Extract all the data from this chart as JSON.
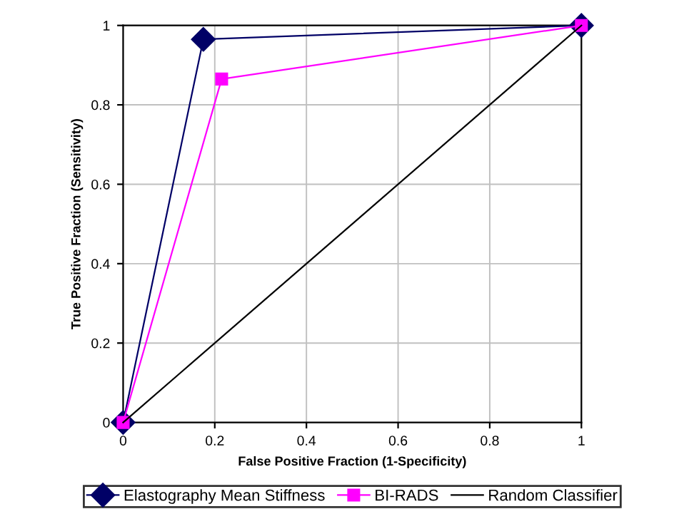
{
  "chart_data": {
    "type": "line",
    "xlabel": "False Positive Fraction (1-Specificity)",
    "ylabel": "True Positive Fraction (Sensitivity)",
    "xlim": [
      0,
      1
    ],
    "ylim": [
      0,
      1
    ],
    "xticks": [
      0,
      0.2,
      0.4,
      0.6,
      0.8,
      1
    ],
    "yticks": [
      0,
      0.2,
      0.4,
      0.6,
      0.8,
      1
    ],
    "grid": true,
    "legend": "bottom",
    "series": [
      {
        "name": "Elastography Mean Stiffness",
        "color": "#000066",
        "marker": "diamond",
        "x": [
          0,
          0.175,
          1
        ],
        "values": [
          0,
          0.965,
          1
        ]
      },
      {
        "name": "BI-RADS",
        "color": "#ff00ff",
        "marker": "square",
        "x": [
          0,
          0.215,
          1
        ],
        "values": [
          0,
          0.865,
          1
        ]
      },
      {
        "name": "Random Classifier",
        "color": "#000000",
        "marker": "none",
        "x": [
          0,
          1
        ],
        "values": [
          0,
          1
        ]
      }
    ]
  }
}
